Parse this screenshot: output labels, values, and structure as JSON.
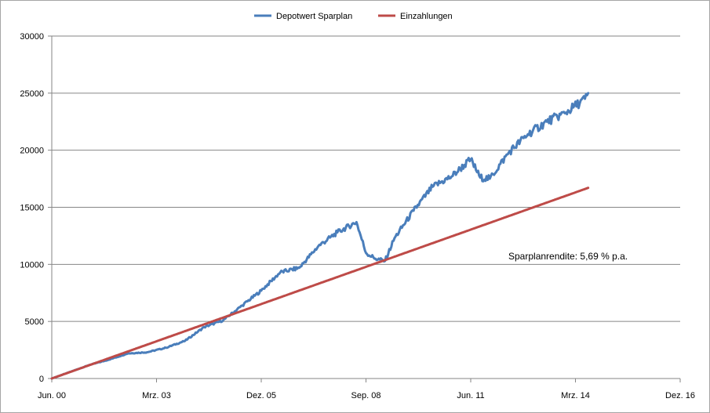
{
  "chart_data": {
    "type": "line",
    "title": "",
    "xlabel": "",
    "ylabel": "",
    "x_ticks": [
      "Jun. 00",
      "Mrz. 03",
      "Dez. 05",
      "Sep. 08",
      "Jun. 11",
      "Mrz. 14",
      "Dez. 16"
    ],
    "y_ticks": [
      "0",
      "5000",
      "10000",
      "15000",
      "20000",
      "25000",
      "30000"
    ],
    "ylim": [
      0,
      30000
    ],
    "xlim": [
      "2000-06",
      "2016-12"
    ],
    "grid": "horizontal",
    "legend_position": "top-center",
    "annotation": "Sparplanrendite: 5,69 % p.a.",
    "series": [
      {
        "name": "Depotwert Sparplan",
        "color": "#4a7ebb",
        "points": [
          [
            "2000-06",
            0
          ],
          [
            "2000-12",
            600
          ],
          [
            "2001-06",
            1200
          ],
          [
            "2001-12",
            1650
          ],
          [
            "2002-06",
            2200
          ],
          [
            "2002-12",
            2300
          ],
          [
            "2003-06",
            2700
          ],
          [
            "2003-12",
            3300
          ],
          [
            "2004-06",
            4500
          ],
          [
            "2004-12",
            5100
          ],
          [
            "2005-06",
            6400
          ],
          [
            "2005-12",
            7700
          ],
          [
            "2006-06",
            9300
          ],
          [
            "2006-12",
            9700
          ],
          [
            "2007-06",
            11600
          ],
          [
            "2007-12",
            12800
          ],
          [
            "2008-06",
            13700
          ],
          [
            "2008-09",
            11000
          ],
          [
            "2008-12",
            10500
          ],
          [
            "2009-03",
            10300
          ],
          [
            "2009-06",
            12300
          ],
          [
            "2009-12",
            14700
          ],
          [
            "2010-06",
            16800
          ],
          [
            "2010-12",
            17700
          ],
          [
            "2011-06",
            19200
          ],
          [
            "2011-09",
            17600
          ],
          [
            "2011-12",
            17500
          ],
          [
            "2012-06",
            19800
          ],
          [
            "2012-12",
            21400
          ],
          [
            "2013-06",
            22500
          ],
          [
            "2013-12",
            23300
          ],
          [
            "2014-06",
            24500
          ],
          [
            "2014-07",
            25000
          ]
        ]
      },
      {
        "name": "Einzahlungen",
        "color": "#be4b48",
        "points": [
          [
            "2000-06",
            0
          ],
          [
            "2014-07",
            16700
          ]
        ]
      }
    ]
  }
}
